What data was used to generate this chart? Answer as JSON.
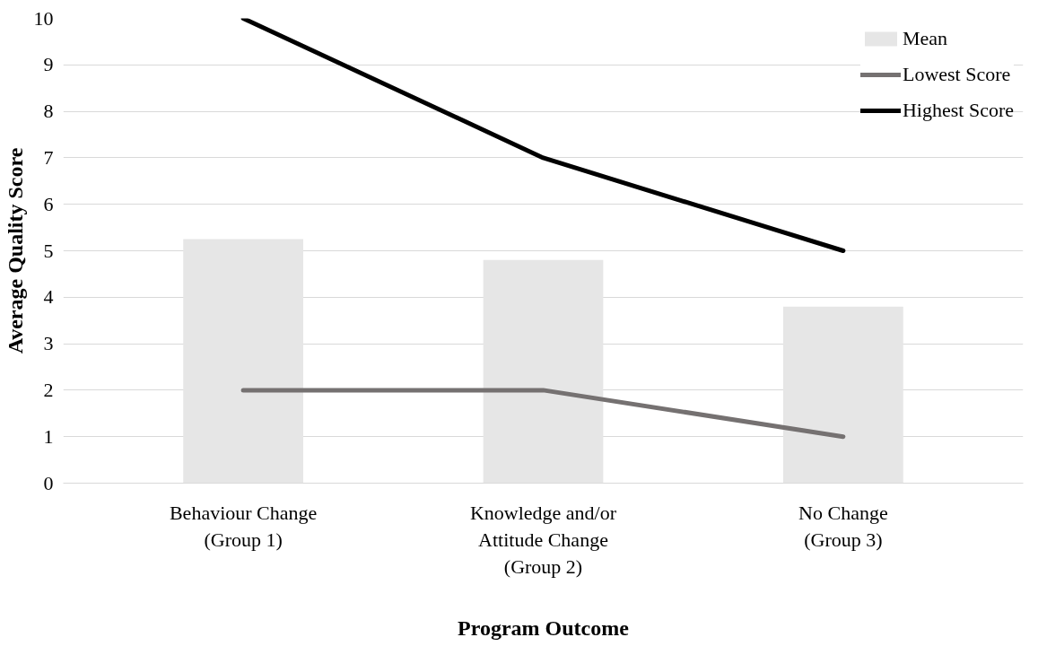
{
  "chart_data": {
    "type": "bar",
    "xlabel": "Program Outcome",
    "ylabel": "Average Quality Score",
    "categories": [
      "Behaviour Change\n(Group 1)",
      "Knowledge and/or\nAttitude Change\n(Group 2)",
      "No Change\n(Group 3)"
    ],
    "series": [
      {
        "name": "Mean",
        "color": "#e6e6e6",
        "values": [
          5.25,
          4.8,
          3.8
        ]
      },
      {
        "name": "Lowest Score",
        "type": "line",
        "color": "#757171",
        "values": [
          2,
          2,
          1
        ]
      },
      {
        "name": "Highest Score",
        "type": "line",
        "color": "#000000",
        "values": [
          10,
          7,
          5
        ]
      }
    ],
    "ylim": [
      0,
      10
    ],
    "yticks": [
      0,
      1,
      2,
      3,
      4,
      5,
      6,
      7,
      8,
      9,
      10
    ],
    "grid": "y",
    "legend": "top right",
    "marker": "none",
    "line_style": "solid"
  }
}
